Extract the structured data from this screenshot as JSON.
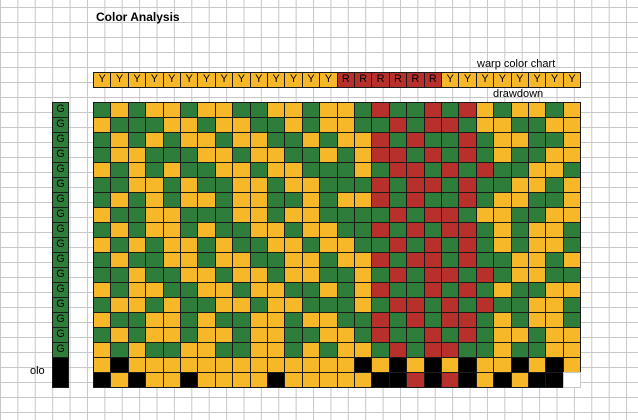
{
  "sheet": {
    "title": "Color Analysis",
    "warp_label": "warp color chart",
    "drawdown_label": "drawdown",
    "partial_label": "olo"
  },
  "colors": {
    "Y": "#f6b829",
    "R": "#b8302c",
    "G": "#2e7d3a",
    "K": "#000000",
    "W": "#ffffff"
  },
  "warp": [
    "Y",
    "Y",
    "Y",
    "Y",
    "Y",
    "Y",
    "Y",
    "Y",
    "Y",
    "Y",
    "Y",
    "Y",
    "Y",
    "Y",
    "R",
    "R",
    "R",
    "R",
    "R",
    "R",
    "Y",
    "Y",
    "Y",
    "Y",
    "Y",
    "Y",
    "Y",
    "Y"
  ],
  "weft": [
    "G",
    "G",
    "G",
    "G",
    "G",
    "G",
    "G",
    "G",
    "G",
    "G",
    "G",
    "G",
    "G",
    "G",
    "G",
    "G",
    "G"
  ],
  "drawdown": [
    "GYGYYGYYGGYYGYYGRGGRGRYGYYGY",
    "YGGGYYGYYGGYGYYGGRGRRGYYGGYY",
    "GYGYGYYGYYGGYGYYRGRGGRGYYGGY",
    "GYYGGGYYGYYGGYGYRRGRGRGYGGYY",
    "YGYGYGGYYGYYGGGYGRRGRGRGGYYG",
    "GGYYGYGGYYGYYGGGRGRRGRGGYYGY",
    "GYGYGYYGYYGGYGYYRGRGGRGYYGGY",
    "YGGYYGGGYYGYYGGGGRGRRGYYGGYY",
    "GYGYYGYGGYYGYYGGRGRGRRGYGYYG",
    "YGYGYYGYGGYYGYYGGRGRGRGYGYYG",
    "GYGGYYGYYGGYYGYYRGRRGRGGYYGY",
    "GGYGGYYGYYGYYGGYGRGRRGRGYYGG",
    "YGYYGGYYGYYGGYGYRGGRGRGYGGYY",
    "GYYGYGGYYGYYGGGYGRRGRGRGGYYG",
    "YGGYYGYGGYYGYYGGRGRGRRGYGYYG",
    "GYGYYGYYGYYGGYYGRGGRGRGYYGYY",
    "YGYGGYYGGYYGYGYYGRGRRGGYGGYY",
    "YKYYYYYYYYYYYYYKYKYKYKYYKYKY",
    "KYKYYKYYYYKYYYYYKKRKRKYKYKKW"
  ]
}
